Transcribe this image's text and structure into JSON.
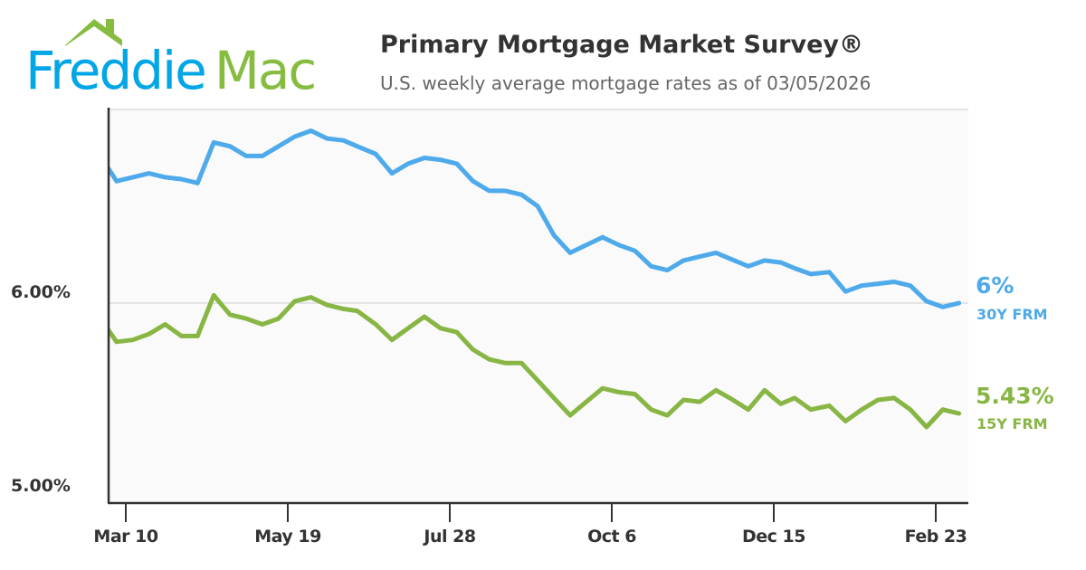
{
  "logo": {
    "text_1": "Freddie",
    "text_2": "Mac",
    "color_1": "#00a6e6",
    "color_2": "#86bc40"
  },
  "header": {
    "title": "Primary Mortgage Market Survey®",
    "subtitle": "U.S. weekly average mortgage rates as of 03/05/2026"
  },
  "chart_data": {
    "type": "line",
    "title": "Primary Mortgage Market Survey®",
    "subtitle": "U.S. weekly average mortgage rates as of 03/05/2026",
    "y_ticks": [
      {
        "value": 6.0,
        "label": "6.00%"
      },
      {
        "value": 5.0,
        "label": "5.00%"
      }
    ],
    "ylim": [
      5.0,
      7.0
    ],
    "gridlines_y": [
      6.0,
      7.0
    ],
    "x_ticks": [
      {
        "date": "2025-03-10",
        "label": "Mar 10"
      },
      {
        "date": "2025-05-19",
        "label": "May 19"
      },
      {
        "date": "2025-07-28",
        "label": "Jul 28"
      },
      {
        "date": "2025-10-06",
        "label": "Oct 6"
      },
      {
        "date": "2025-12-15",
        "label": "Dec 15"
      },
      {
        "date": "2026-02-23",
        "label": "Feb 23"
      }
    ],
    "xlim": [
      "2025-03-03",
      "2026-03-06"
    ],
    "x": [
      "2025-02-27",
      "2025-03-06",
      "2025-03-13",
      "2025-03-20",
      "2025-03-27",
      "2025-04-03",
      "2025-04-10",
      "2025-04-17",
      "2025-04-24",
      "2025-05-01",
      "2025-05-08",
      "2025-05-15",
      "2025-05-22",
      "2025-05-29",
      "2025-06-05",
      "2025-06-12",
      "2025-06-18",
      "2025-06-26",
      "2025-07-03",
      "2025-07-10",
      "2025-07-17",
      "2025-07-24",
      "2025-07-31",
      "2025-08-07",
      "2025-08-14",
      "2025-08-21",
      "2025-08-28",
      "2025-09-04",
      "2025-09-11",
      "2025-09-18",
      "2025-09-25",
      "2025-10-02",
      "2025-10-09",
      "2025-10-16",
      "2025-10-23",
      "2025-10-30",
      "2025-11-06",
      "2025-11-13",
      "2025-11-20",
      "2025-11-26",
      "2025-12-04",
      "2025-12-11",
      "2025-12-18",
      "2025-12-24",
      "2025-12-31",
      "2026-01-08",
      "2026-01-15",
      "2026-01-22",
      "2026-01-29",
      "2026-02-05",
      "2026-02-12",
      "2026-02-19",
      "2026-02-26",
      "2026-03-05"
    ],
    "series": [
      {
        "name": "30Y FRM",
        "end_label": "6%",
        "color": "#4eaaea",
        "values": [
          6.76,
          6.63,
          6.65,
          6.67,
          6.65,
          6.64,
          6.62,
          6.83,
          6.81,
          6.76,
          6.76,
          6.81,
          6.86,
          6.89,
          6.85,
          6.84,
          6.81,
          6.77,
          6.67,
          6.72,
          6.75,
          6.74,
          6.72,
          6.63,
          6.58,
          6.58,
          6.56,
          6.5,
          6.35,
          6.26,
          6.3,
          6.34,
          6.3,
          6.27,
          6.19,
          6.17,
          6.22,
          6.24,
          6.26,
          6.23,
          6.19,
          6.22,
          6.21,
          6.18,
          6.15,
          6.16,
          6.06,
          6.09,
          6.1,
          6.11,
          6.09,
          6.01,
          5.98,
          6.0
        ]
      },
      {
        "name": "15Y FRM",
        "end_label": "5.43%",
        "color": "#88b644",
        "values": [
          5.92,
          5.8,
          5.81,
          5.84,
          5.89,
          5.83,
          5.83,
          6.04,
          5.94,
          5.92,
          5.89,
          5.92,
          6.01,
          6.03,
          5.99,
          5.97,
          5.96,
          5.89,
          5.81,
          5.87,
          5.93,
          5.87,
          5.85,
          5.76,
          5.71,
          5.69,
          5.69,
          5.6,
          5.51,
          5.42,
          5.49,
          5.56,
          5.54,
          5.53,
          5.45,
          5.42,
          5.5,
          5.49,
          5.55,
          5.51,
          5.45,
          5.55,
          5.48,
          5.51,
          5.45,
          5.47,
          5.39,
          5.45,
          5.5,
          5.51,
          5.45,
          5.36,
          5.45,
          5.43
        ]
      }
    ],
    "grid": true,
    "legend": "right (end labels)"
  }
}
